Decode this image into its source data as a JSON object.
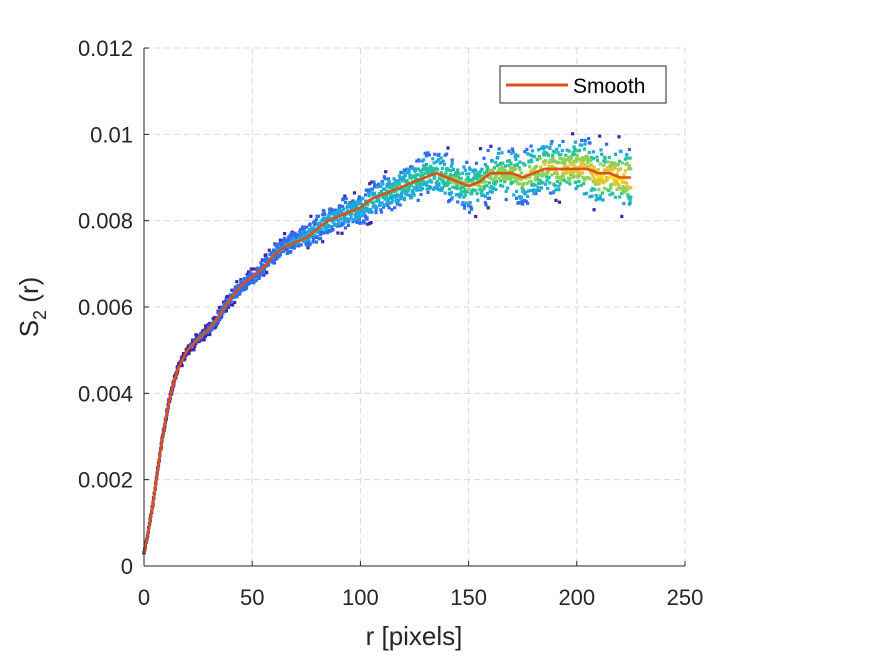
{
  "chart_data": {
    "type": "scatter",
    "xlabel": "r [pixels]",
    "ylabel_main": "S",
    "ylabel_sub": "2",
    "ylabel_tail": " (r)",
    "xlim": [
      0,
      250
    ],
    "ylim": [
      0,
      0.012
    ],
    "x_ticks": [
      0,
      50,
      100,
      150,
      200,
      250
    ],
    "x_tick_labels": [
      "0",
      "50",
      "100",
      "150",
      "200",
      "250"
    ],
    "y_ticks": [
      0,
      0.002,
      0.004,
      0.006,
      0.008,
      0.01,
      0.012
    ],
    "y_tick_labels": [
      "0",
      "0.002",
      "0.004",
      "0.006",
      "0.008",
      "0.01",
      "0.012"
    ],
    "grid": true,
    "legend": {
      "placement": "top-right",
      "entries": [
        "Smooth"
      ]
    },
    "colors": {
      "smooth_line": "#d95319",
      "axis": "#262626",
      "grid": "#d9d9d9"
    },
    "scatter_colormap": [
      "#3e26a8",
      "#2e6fef",
      "#1fa8d8",
      "#26c1a0",
      "#8bd05a",
      "#e4c62c",
      "#f9e51b"
    ],
    "series": [
      {
        "name": "Smooth",
        "x": [
          0,
          2,
          4,
          6,
          8,
          10,
          12,
          14,
          16,
          18,
          20,
          24,
          28,
          32,
          36,
          40,
          45,
          50,
          55,
          60,
          65,
          70,
          75,
          80,
          85,
          90,
          95,
          100,
          105,
          110,
          115,
          120,
          125,
          130,
          135,
          140,
          145,
          150,
          155,
          160,
          165,
          170,
          175,
          180,
          185,
          190,
          195,
          200,
          205,
          210,
          215,
          220,
          225
        ],
        "y": [
          0.0003,
          0.0008,
          0.0014,
          0.0021,
          0.0028,
          0.0034,
          0.0039,
          0.0043,
          0.0046,
          0.0048,
          0.005,
          0.0052,
          0.0054,
          0.0056,
          0.0059,
          0.0062,
          0.0065,
          0.0067,
          0.0069,
          0.0072,
          0.0074,
          0.0075,
          0.0076,
          0.0078,
          0.008,
          0.0081,
          0.0082,
          0.0083,
          0.0085,
          0.0086,
          0.0087,
          0.0088,
          0.0089,
          0.009,
          0.0091,
          0.009,
          0.0089,
          0.0088,
          0.0089,
          0.0091,
          0.0091,
          0.0091,
          0.009,
          0.0091,
          0.0092,
          0.0092,
          0.0092,
          0.0092,
          0.0092,
          0.0091,
          0.0091,
          0.009,
          0.009
        ]
      }
    ],
    "scatter_cloud": {
      "x_max": 225,
      "spread_y": [
        2e-05,
        0.0001,
        0.00015,
        0.0002,
        0.0003,
        0.00035,
        0.00045,
        0.0005,
        0.0005,
        0.00055,
        0.0006,
        0.0006
      ]
    }
  }
}
